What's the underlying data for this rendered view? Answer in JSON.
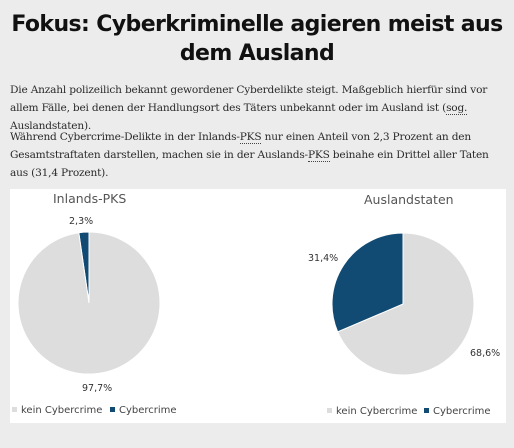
{
  "article": {
    "title": "Fokus: Cyberkriminelle agieren meist aus dem Ausland",
    "paragraph_1": {
      "before": "Die Anzahl polizeilich bekannt gewordener Cyberdelikte steigt. Maßgeblich hierfür sind vor allem Fälle, bei denen der Handlungsort des Täters unbekannt oder im Ausland ist (",
      "abbr": "sog.",
      "after": " Auslandstaten)."
    },
    "paragraph_2": {
      "part_1": "Während Cybercrime-Delikte in der Inlands-",
      "abbr_1": "PKS",
      "part_2": " nur einen Anteil von 2,3 Prozent an den Gesamtstraftaten darstellen, machen sie in der Auslands-",
      "abbr_2": "PKS",
      "part_3": " beinahe ein Drittel aller Taten aus (31,4 Prozent)."
    }
  },
  "chart_data": [
    {
      "type": "pie",
      "title": "Inlands-PKS",
      "slices": [
        {
          "label": "kein Cybercrime",
          "value": 97.7,
          "value_label": "97,7%",
          "color": "#dcdddc"
        },
        {
          "label": "Cybercrime",
          "value": 2.3,
          "value_label": "2,3%",
          "color": "#114a72"
        }
      ],
      "legend": {
        "position": "bottom-left",
        "entries": [
          "kein Cybercrime",
          "Cybercrime"
        ]
      }
    },
    {
      "type": "pie",
      "title": "Auslandstaten",
      "slices": [
        {
          "label": "kein Cybercrime",
          "value": 68.6,
          "value_label": "68,6%",
          "color": "#dcdddc"
        },
        {
          "label": "Cybercrime",
          "value": 31.4,
          "value_label": "31,4%",
          "color": "#114a72"
        }
      ],
      "legend": {
        "position": "bottom-right",
        "entries": [
          "kein Cybercrime",
          "Cybercrime"
        ]
      }
    }
  ]
}
